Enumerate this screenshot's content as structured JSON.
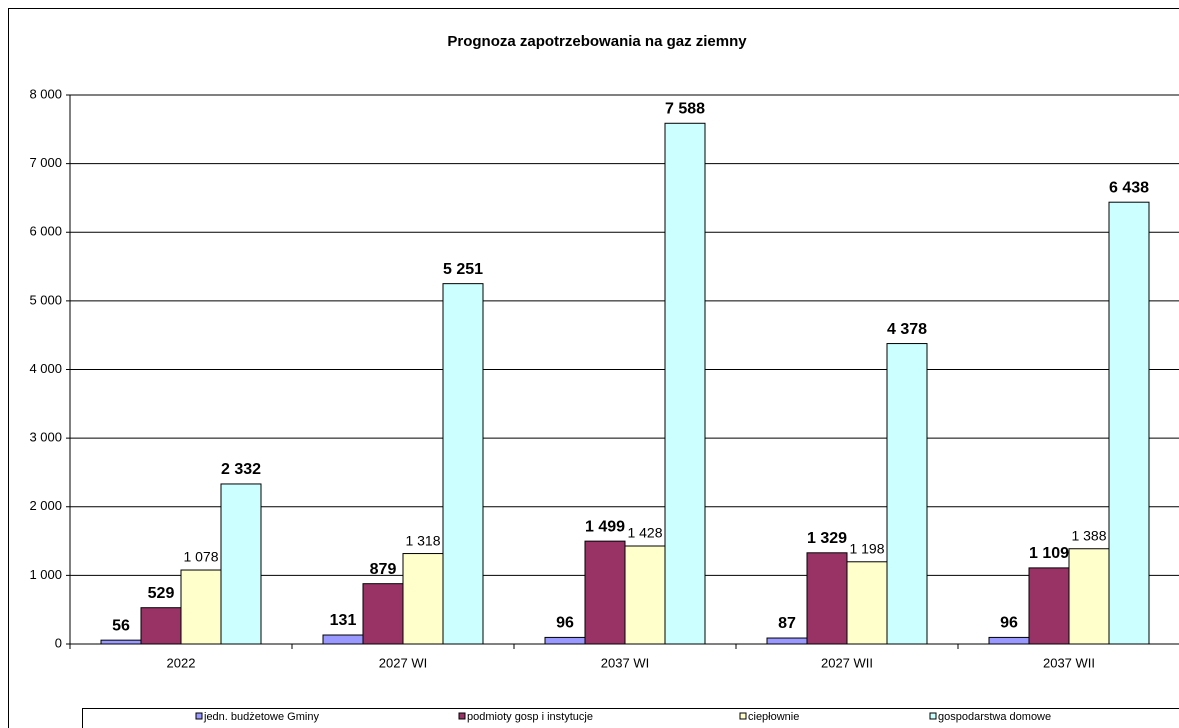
{
  "chart_data": {
    "type": "bar",
    "title": "Prognoza zapotrzebowania na gaz ziemny",
    "categories": [
      "2022",
      "2027 WI",
      "2037 WI",
      "2027 WII",
      "2037 WII"
    ],
    "series": [
      {
        "name": "jedn. budżetowe Gminy",
        "color": "#9999ff",
        "values": [
          56,
          131,
          96,
          87,
          96
        ],
        "value_labels": [
          "56",
          "131",
          "96",
          "87",
          "96"
        ]
      },
      {
        "name": "podmioty gosp i instytucje",
        "color": "#993366",
        "values": [
          529,
          879,
          1499,
          1329,
          1109
        ],
        "value_labels": [
          "529",
          "879",
          "1 499",
          "1 329",
          "1 109"
        ]
      },
      {
        "name": "ciepłownie",
        "color": "#ffffcc",
        "values": [
          1078,
          1318,
          1428,
          1198,
          1388
        ],
        "value_labels": [
          "1 078",
          "1 318",
          "1 428",
          "1 198",
          "1 388"
        ]
      },
      {
        "name": "gospodarstwa domowe",
        "color": "#ccffff",
        "values": [
          2332,
          5251,
          7588,
          4378,
          6438
        ],
        "value_labels": [
          "2 332",
          "5 251",
          "7 588",
          "4 378",
          "6 438"
        ]
      }
    ],
    "ylim": [
      0,
      8000
    ],
    "yticks": [
      0,
      {
        "value": 1000,
        "label": "1 000"
      },
      {
        "value": 2000,
        "label": "2 000"
      },
      {
        "value": 3000,
        "label": "3 000"
      },
      {
        "value": 4000,
        "label": "4 000"
      },
      {
        "value": 5000,
        "label": "5 000"
      },
      {
        "value": 6000,
        "label": "6 000"
      },
      {
        "value": 7000,
        "label": "7 000"
      },
      {
        "value": 8000,
        "label": "8 000"
      }
    ],
    "grid": true,
    "legend": "bottom"
  }
}
